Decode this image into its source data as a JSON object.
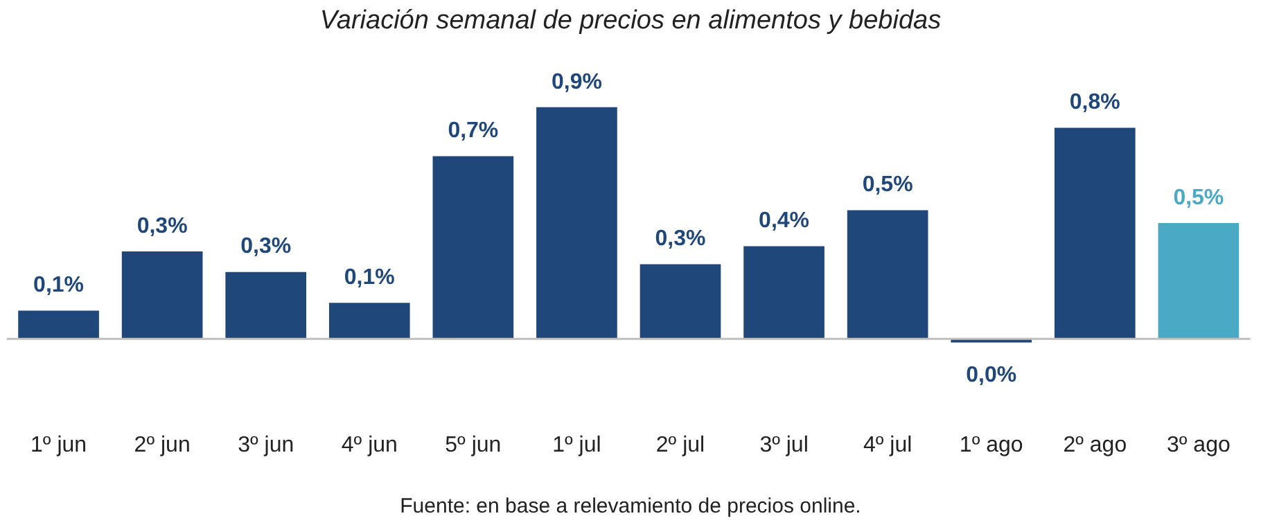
{
  "chart_data": {
    "type": "bar",
    "title": "Variación semanal de precios en alimentos y bebidas",
    "categories": [
      "1º jun",
      "2º jun",
      "3º jun",
      "4º jun",
      "5º jun",
      "1º jul",
      "2º jul",
      "3º jul",
      "4º jul",
      "1º ago",
      "2º ago",
      "3º ago"
    ],
    "values": [
      0.11,
      0.34,
      0.26,
      0.14,
      0.71,
      0.9,
      0.29,
      0.36,
      0.5,
      -0.014,
      0.82,
      0.45
    ],
    "value_labels": [
      "0,1%",
      "0,3%",
      "0,3%",
      "0,1%",
      "0,7%",
      "0,9%",
      "0,3%",
      "0,4%",
      "0,5%",
      "0,0%",
      "0,8%",
      "0,5%"
    ],
    "colors": [
      "#1f477a",
      "#1f477a",
      "#1f477a",
      "#1f477a",
      "#1f477a",
      "#1f477a",
      "#1f477a",
      "#1f477a",
      "#1f477a",
      "#1f477a",
      "#1f477a",
      "#4aaac6"
    ],
    "annotations": [
      "Fuente: en base a relevamiento de precios online."
    ],
    "grid": false,
    "legend": false
  }
}
